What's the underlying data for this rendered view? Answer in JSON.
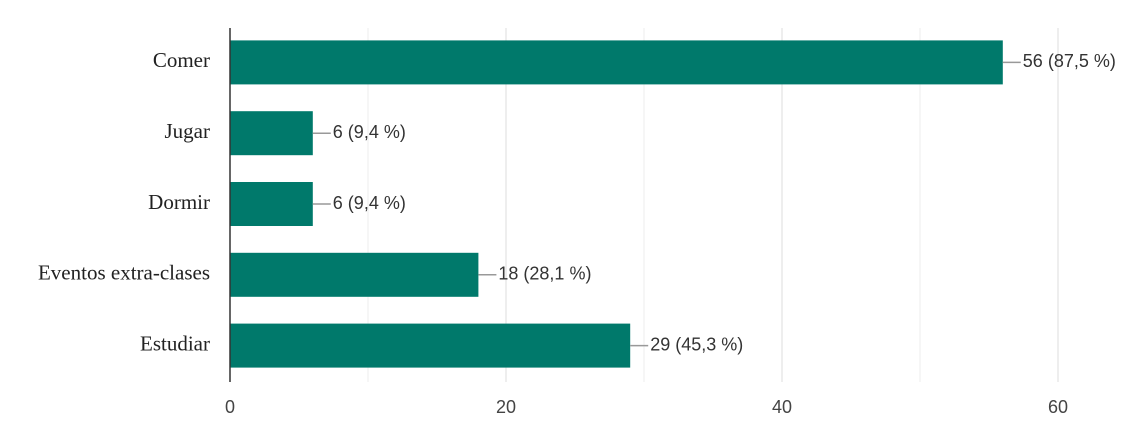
{
  "chart_data": {
    "type": "hbar",
    "categories": [
      "Comer",
      "Jugar",
      "Dormir",
      "Eventos extra-clases",
      "Estudiar"
    ],
    "values": [
      56,
      6,
      6,
      18,
      29
    ],
    "value_labels": [
      "56 (87,5 %)",
      "6 (9,4 %)",
      "6 (9,4 %)",
      "18 (28,1 %)",
      "29 (45,3 %)"
    ],
    "color": "#00796b",
    "xlim": [
      0,
      60
    ],
    "xticks": [
      0,
      20,
      40,
      60
    ],
    "x_minor_gridlines": [
      10,
      30,
      50
    ],
    "grid": true
  }
}
